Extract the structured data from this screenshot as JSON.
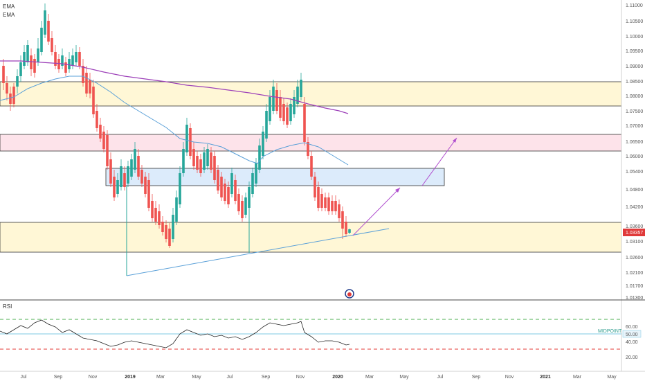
{
  "indicators": {
    "ema1": "EMA",
    "ema2": "EMA",
    "rsi": "RSI"
  },
  "price_axis": {
    "ticks": [
      {
        "label": "1.11000",
        "v": 1.11
      },
      {
        "label": "1.10500",
        "v": 1.105
      },
      {
        "label": "1.10000",
        "v": 1.1
      },
      {
        "label": "1.09500",
        "v": 1.095
      },
      {
        "label": "1.09000",
        "v": 1.09
      },
      {
        "label": "1.08500",
        "v": 1.085
      },
      {
        "label": "1.08000",
        "v": 1.08
      },
      {
        "label": "1.07500",
        "v": 1.075
      },
      {
        "label": "1.07000",
        "v": 1.07
      },
      {
        "label": "1.06500",
        "v": 1.065
      },
      {
        "label": "1.06000",
        "v": 1.06
      },
      {
        "label": "1.05400",
        "v": 1.054
      },
      {
        "label": "1.04800",
        "v": 1.048
      },
      {
        "label": "1.04200",
        "v": 1.042
      },
      {
        "label": "1.03600",
        "v": 1.036
      },
      {
        "label": "1.03100",
        "v": 1.031
      },
      {
        "label": "1.02600",
        "v": 1.026
      },
      {
        "label": "1.02100",
        "v": 1.021
      },
      {
        "label": "1.01700",
        "v": 1.017
      },
      {
        "label": "1.01300",
        "v": 1.013
      }
    ],
    "current": {
      "label": "1.03357",
      "v": 1.03357,
      "color": "#e03a3a"
    }
  },
  "rsi_axis": {
    "ticks": [
      {
        "label": "60.00",
        "v": 60
      },
      {
        "label": "40.00",
        "v": 40
      },
      {
        "label": "20.00",
        "v": 20
      }
    ],
    "current": {
      "label": "50.00",
      "v": 50
    },
    "midpoint_label": "MIDPOINT"
  },
  "time_axis": [
    "Jul",
    "Sep",
    "Nov",
    "2019",
    "Mar",
    "May",
    "Jul",
    "Sep",
    "Nov",
    "2020",
    "Mar",
    "May",
    "Jul",
    "Sep",
    "Nov",
    "2021",
    "Mar",
    "May"
  ],
  "colors": {
    "up": "#26a69a",
    "down": "#ef5350",
    "ema_fast": "#5aa0d8",
    "ema_slow": "#9c3fb8",
    "zone_yellow": "#fff7d6",
    "zone_pink": "#fde3ea",
    "zone_blue": "#dcebfb",
    "arrow": "#b04fcf"
  },
  "logo_icon": "tradingview-event-icon"
}
